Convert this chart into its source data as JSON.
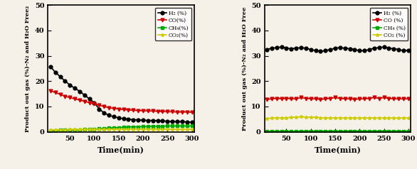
{
  "time": [
    10,
    20,
    30,
    40,
    50,
    60,
    70,
    80,
    90,
    100,
    110,
    120,
    130,
    140,
    150,
    160,
    170,
    180,
    190,
    200,
    210,
    220,
    230,
    240,
    250,
    260,
    270,
    280,
    290,
    300
  ],
  "left": {
    "H2": [
      25.8,
      23.5,
      21.8,
      20.0,
      18.5,
      17.2,
      16.0,
      14.5,
      13.0,
      11.5,
      9.0,
      7.5,
      6.5,
      6.0,
      5.5,
      5.2,
      5.0,
      4.8,
      4.7,
      4.6,
      4.5,
      4.5,
      4.4,
      4.3,
      4.2,
      4.1,
      4.0,
      4.0,
      3.9,
      3.8
    ],
    "CO": [
      16.2,
      15.5,
      14.8,
      14.0,
      13.5,
      13.0,
      12.5,
      12.0,
      11.5,
      11.0,
      10.5,
      10.0,
      9.5,
      9.2,
      9.0,
      8.8,
      8.6,
      8.5,
      8.4,
      8.3,
      8.2,
      8.2,
      8.1,
      8.0,
      7.9,
      7.9,
      7.8,
      7.8,
      7.8,
      7.7
    ],
    "CH4": [
      0.5,
      0.5,
      0.6,
      0.6,
      0.7,
      0.7,
      0.8,
      0.9,
      1.0,
      1.0,
      1.2,
      1.3,
      1.5,
      1.6,
      1.7,
      1.8,
      1.9,
      2.0,
      2.0,
      2.1,
      2.1,
      2.2,
      2.2,
      2.2,
      2.3,
      2.3,
      2.3,
      2.3,
      2.3,
      2.3
    ],
    "CO2": [
      0.8,
      0.8,
      0.8,
      0.8,
      0.9,
      0.9,
      0.9,
      0.9,
      1.0,
      1.0,
      1.0,
      1.0,
      1.0,
      1.0,
      1.0,
      1.0,
      1.0,
      1.0,
      1.0,
      1.0,
      1.0,
      1.0,
      1.0,
      1.0,
      1.0,
      1.0,
      1.0,
      1.0,
      1.0,
      1.0
    ]
  },
  "right": {
    "H2": [
      32.5,
      33.0,
      33.2,
      33.5,
      33.0,
      32.8,
      33.0,
      33.2,
      33.0,
      32.5,
      32.0,
      31.8,
      32.0,
      32.5,
      33.0,
      33.2,
      33.0,
      32.8,
      32.5,
      32.0,
      32.0,
      32.5,
      33.0,
      33.2,
      33.5,
      33.0,
      32.8,
      32.5,
      32.0,
      32.2
    ],
    "CO": [
      12.8,
      13.0,
      13.2,
      13.0,
      13.2,
      13.0,
      13.0,
      13.5,
      13.2,
      13.0,
      13.0,
      12.8,
      13.0,
      13.2,
      13.5,
      13.2,
      13.0,
      13.0,
      12.8,
      13.0,
      13.0,
      13.2,
      13.5,
      13.2,
      13.5,
      13.2,
      13.0,
      13.0,
      13.0,
      13.0
    ],
    "CH4": [
      0.2,
      0.2,
      0.2,
      0.2,
      0.2,
      0.2,
      0.2,
      0.3,
      0.3,
      0.3,
      0.3,
      0.3,
      0.3,
      0.3,
      0.3,
      0.3,
      0.3,
      0.3,
      0.3,
      0.3,
      0.3,
      0.3,
      0.3,
      0.3,
      0.3,
      0.3,
      0.3,
      0.3,
      0.3,
      0.3
    ],
    "CO2": [
      5.2,
      5.5,
      5.5,
      5.5,
      5.5,
      5.8,
      5.8,
      6.0,
      5.8,
      5.8,
      5.8,
      5.5,
      5.5,
      5.5,
      5.5,
      5.5,
      5.5,
      5.5,
      5.5,
      5.5,
      5.5,
      5.5,
      5.5,
      5.5,
      5.5,
      5.5,
      5.5,
      5.5,
      5.5,
      5.5
    ]
  },
  "colors": {
    "H2": "#000000",
    "CO": "#cc0000",
    "CH4": "#00aa00",
    "CO2": "#cccc00"
  },
  "markers": {
    "H2": "o",
    "CO": "v",
    "CH4": "s",
    "CO2": "*"
  },
  "ylim": [
    0,
    50
  ],
  "xlim": [
    5,
    305
  ],
  "xticks": [
    50,
    100,
    150,
    200,
    250,
    300
  ],
  "yticks": [
    0,
    10,
    20,
    30,
    40,
    50
  ],
  "xlabel": "Time(min)",
  "ylabel_left": "Product out gas (%)-N₂ and H₂O Free₂",
  "ylabel_right": "Product out gas (%)-N₂ and H₂O Free",
  "legend_labels_left": [
    "H₂ (%)",
    "CO(%)",
    "CH₄(%)",
    "CO₂(%)"
  ],
  "legend_labels_right": [
    "H₂ (%)",
    "CO (%)",
    "CH₄ (%)",
    "CO₂ (%)"
  ],
  "bg_color": "#f5f0e8",
  "fig_width": 5.86,
  "fig_height": 2.38,
  "dpi": 100
}
